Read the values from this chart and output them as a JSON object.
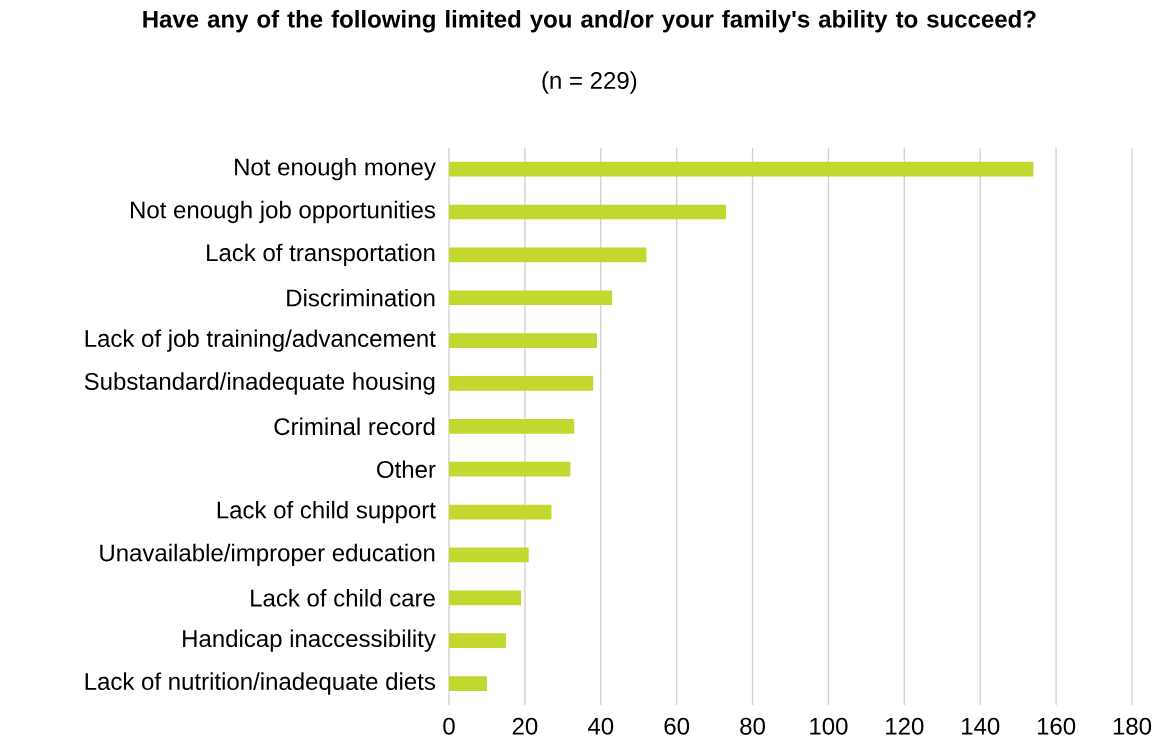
{
  "chart_data": {
    "type": "bar",
    "orientation": "horizontal",
    "title": "Have any of the following limited you and/or your family's ability to succeed?",
    "subtitle": "(n = 229)",
    "categories": [
      "Not enough money",
      "Not enough job opportunities",
      "Lack of transportation",
      "Discrimination",
      "Lack of job training/advancement",
      "Substandard/inadequate housing",
      "Criminal record",
      "Other",
      "Lack of child support",
      "Unavailable/improper education",
      "Lack of child care",
      "Handicap inaccessibility",
      "Lack of nutrition/inadequate diets"
    ],
    "values": [
      154,
      73,
      52,
      43,
      39,
      38,
      33,
      32,
      27,
      21,
      19,
      15,
      10
    ],
    "color": "#c2d82f",
    "xlim": [
      0,
      180
    ],
    "xticks": [
      0,
      20,
      40,
      60,
      80,
      100,
      120,
      140,
      160,
      180
    ],
    "grid": "x"
  }
}
